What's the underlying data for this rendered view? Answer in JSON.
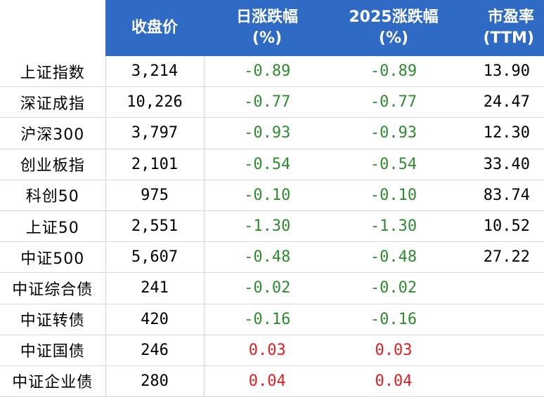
{
  "headers": {
    "name": "",
    "close": "收盘价",
    "daily_change_line1": "日涨跌幅",
    "daily_change_line2": "(%)",
    "ytd_change_line1": "2025涨跌幅",
    "ytd_change_line2": "(%)",
    "pe_line1": "市盈率",
    "pe_line2": "(TTM)"
  },
  "rows": [
    {
      "name": "上证指数",
      "close": "3,214",
      "daily": "-0.89",
      "ytd": "-0.89",
      "pe": "13.90",
      "sign": "neg"
    },
    {
      "name": "深证成指",
      "close": "10,226",
      "daily": "-0.77",
      "ytd": "-0.77",
      "pe": "24.47",
      "sign": "neg"
    },
    {
      "name": "沪深300",
      "close": "3,797",
      "daily": "-0.93",
      "ytd": "-0.93",
      "pe": "12.30",
      "sign": "neg"
    },
    {
      "name": "创业板指",
      "close": "2,101",
      "daily": "-0.54",
      "ytd": "-0.54",
      "pe": "33.40",
      "sign": "neg"
    },
    {
      "name": "科创50",
      "close": "975",
      "daily": "-0.10",
      "ytd": "-0.10",
      "pe": "83.74",
      "sign": "neg"
    },
    {
      "name": "上证50",
      "close": "2,551",
      "daily": "-1.30",
      "ytd": "-1.30",
      "pe": "10.52",
      "sign": "neg"
    },
    {
      "name": "中证500",
      "close": "5,607",
      "daily": "-0.48",
      "ytd": "-0.48",
      "pe": "27.22",
      "sign": "neg"
    },
    {
      "name": "中证综合债",
      "close": "241",
      "daily": "-0.02",
      "ytd": "-0.02",
      "pe": "",
      "sign": "neg"
    },
    {
      "name": "中证转债",
      "close": "420",
      "daily": "-0.16",
      "ytd": "-0.16",
      "pe": "",
      "sign": "neg"
    },
    {
      "name": "中证国债",
      "close": "246",
      "daily": "0.03",
      "ytd": "0.03",
      "pe": "",
      "sign": "pos"
    },
    {
      "name": "中证企业债",
      "close": "280",
      "daily": "0.04",
      "ytd": "0.04",
      "pe": "",
      "sign": "pos"
    }
  ],
  "colors": {
    "header_bg": "#2f6ac4",
    "negative": "#2e8b2e",
    "positive": "#e02020"
  }
}
